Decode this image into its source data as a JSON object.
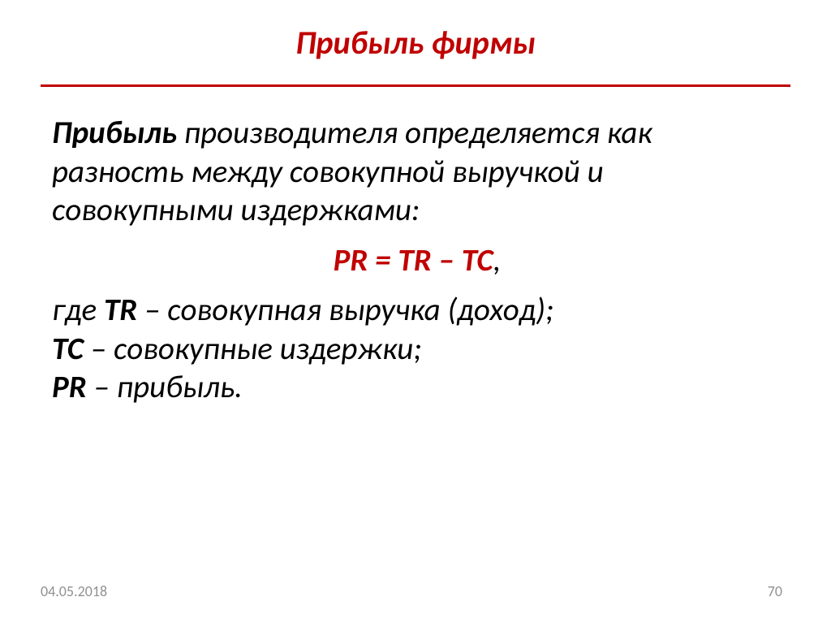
{
  "colors": {
    "title": "#c00000",
    "rule": "#c00000",
    "body": "#000000",
    "formula": "#c00000",
    "footer": "#928f8f"
  },
  "title": "Прибыль фирмы",
  "intro": {
    "bold1": "Прибыль",
    "rest1": " производителя определяется как разность между совокупной выручкой и совокупными издержками:"
  },
  "formula": {
    "text": "PR = TR – TC",
    "comma": ","
  },
  "defs": {
    "line1_prefix": "где ",
    "tr": "TR",
    "line1_rest": " – совокупная выручка (доход);",
    "tc": "TC",
    "line2_rest": " – совокупные издержки;",
    "pr": "PR",
    "line3_rest": " – прибыль."
  },
  "footer": {
    "date": "04.05.2018",
    "page": "70"
  }
}
